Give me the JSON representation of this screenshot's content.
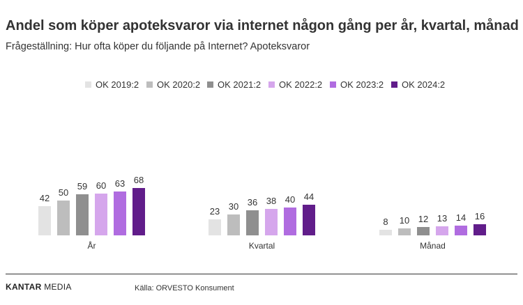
{
  "header": {
    "title": "Andel som köper apoteksvaror via internet någon gång per år, kvartal, månad",
    "subtitle": "Frågeställning: Hur ofta köper du följande på Internet? Apoteksvaror"
  },
  "footer": {
    "logo_bold": "KANTAR",
    "logo_light": " MEDIA",
    "source": "Källa: ORVESTO Konsument"
  },
  "chart_data": {
    "type": "bar",
    "title": "Andel som köper apoteksvaror via internet någon gång per år, kvartal, månad",
    "subtitle": "Frågeställning: Hur ofta köper du följande på Internet? Apoteksvaror",
    "xlabel": "",
    "ylabel": "",
    "grid": false,
    "legend_position": "top",
    "categories": [
      "År",
      "Kvartal",
      "Månad"
    ],
    "series": [
      {
        "name": "OK 2019:2",
        "color": "#e3e3e3",
        "values": [
          42,
          23,
          8
        ]
      },
      {
        "name": "OK 2020:2",
        "color": "#bdbdbd",
        "values": [
          50,
          30,
          10
        ]
      },
      {
        "name": "OK 2021:2",
        "color": "#8f8f8f",
        "values": [
          59,
          36,
          12
        ]
      },
      {
        "name": "OK 2022:2",
        "color": "#d5a6ec",
        "values": [
          60,
          38,
          13
        ]
      },
      {
        "name": "OK 2023:2",
        "color": "#b06ce0",
        "values": [
          63,
          40,
          14
        ]
      },
      {
        "name": "OK 2024:2",
        "color": "#611d8a",
        "values": [
          68,
          44,
          16
        ]
      }
    ]
  }
}
